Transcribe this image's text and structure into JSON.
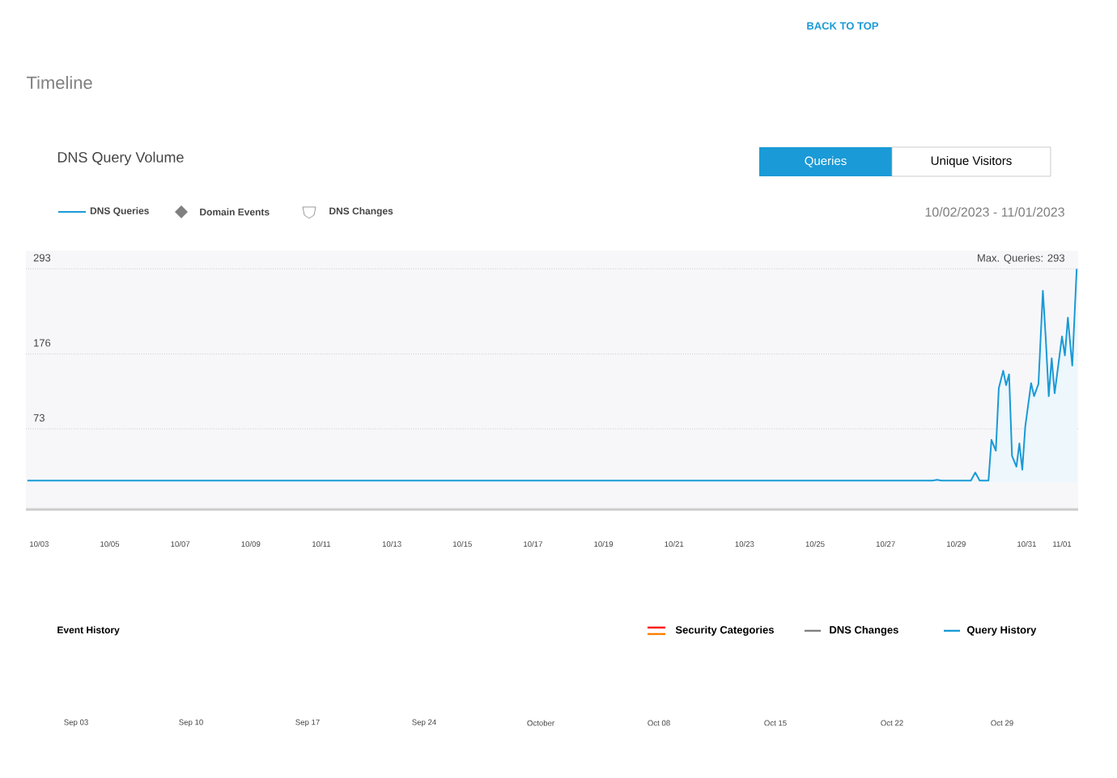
{
  "chart_data": {
    "type": "area",
    "title": "DNS Query Volume",
    "series": [
      {
        "name": "DNS Queries",
        "color": "#1a9ad6",
        "x": [
          "2023-10-02T16:00",
          "2023-10-28T08:00",
          "2023-10-28T11:00",
          "2023-10-28T14:00",
          "2023-10-29T10:00",
          "2023-10-29T13:00",
          "2023-10-29T16:00",
          "2023-10-29T22:00",
          "2023-10-30T00:00",
          "2023-10-30T03:00",
          "2023-10-30T05:00",
          "2023-10-30T08:00",
          "2023-10-30T10:00",
          "2023-10-30T12:00",
          "2023-10-30T14:00",
          "2023-10-30T17:00",
          "2023-10-30T19:00",
          "2023-10-30T21:00",
          "2023-10-30T23:00",
          "2023-10-31T03:00",
          "2023-10-31T05:00",
          "2023-10-31T08:00",
          "2023-10-31T11:00",
          "2023-10-31T13:00",
          "2023-10-31T15:00",
          "2023-10-31T17:00",
          "2023-10-31T19:00",
          "2023-11-01T00:00",
          "2023-11-01T02:00",
          "2023-11-01T04:00",
          "2023-11-01T06:00",
          "2023-11-01T07:00",
          "2023-11-01T10:00"
        ],
        "values": [
          2,
          2,
          3,
          2,
          2,
          13,
          2,
          2,
          58,
          43,
          129,
          153,
          133,
          148,
          36,
          21,
          53,
          17,
          76,
          136,
          118,
          135,
          263,
          196,
          118,
          170,
          122,
          200,
          174,
          226,
          181,
          160,
          293
        ]
      }
    ],
    "xlim": [
      "2023-10-02T15:00",
      "2023-11-01T11:00"
    ],
    "xticks": [
      {
        "value": "2023-10-03",
        "label": "10/03"
      },
      {
        "value": "2023-10-05",
        "label": "10/05"
      },
      {
        "value": "2023-10-07",
        "label": "10/07"
      },
      {
        "value": "2023-10-09",
        "label": "10/09"
      },
      {
        "value": "2023-10-11",
        "label": "10/11"
      },
      {
        "value": "2023-10-13",
        "label": "10/13"
      },
      {
        "value": "2023-10-15",
        "label": "10/15"
      },
      {
        "value": "2023-10-17",
        "label": "10/17"
      },
      {
        "value": "2023-10-19",
        "label": "10/19"
      },
      {
        "value": "2023-10-21",
        "label": "10/21"
      },
      {
        "value": "2023-10-23",
        "label": "10/23"
      },
      {
        "value": "2023-10-25",
        "label": "10/25"
      },
      {
        "value": "2023-10-27",
        "label": "10/27"
      },
      {
        "value": "2023-10-29",
        "label": "10/29"
      },
      {
        "value": "2023-10-31",
        "label": "10/31"
      },
      {
        "value": "2023-11-01",
        "label": "11/01"
      }
    ],
    "ylim": [
      0,
      318
    ],
    "yticks": [
      73,
      176,
      293
    ],
    "grid": "y",
    "legend": "top left",
    "annotations": [
      "Timeline",
      "BACK TO TOP",
      "Queries",
      "Unique Visitors",
      "Domain Events",
      "DNS Changes",
      "10/02/2023 - 11/01/2023",
      "Max. Queries: 293",
      "Event History",
      "Security Categories",
      "DNS Changes",
      "Query History",
      "Sep 03",
      "Sep 10",
      "Sep 17",
      "Sep 24",
      "October",
      "Oct 08",
      "Oct 15",
      "Oct 22",
      "Oct 29"
    ]
  }
}
